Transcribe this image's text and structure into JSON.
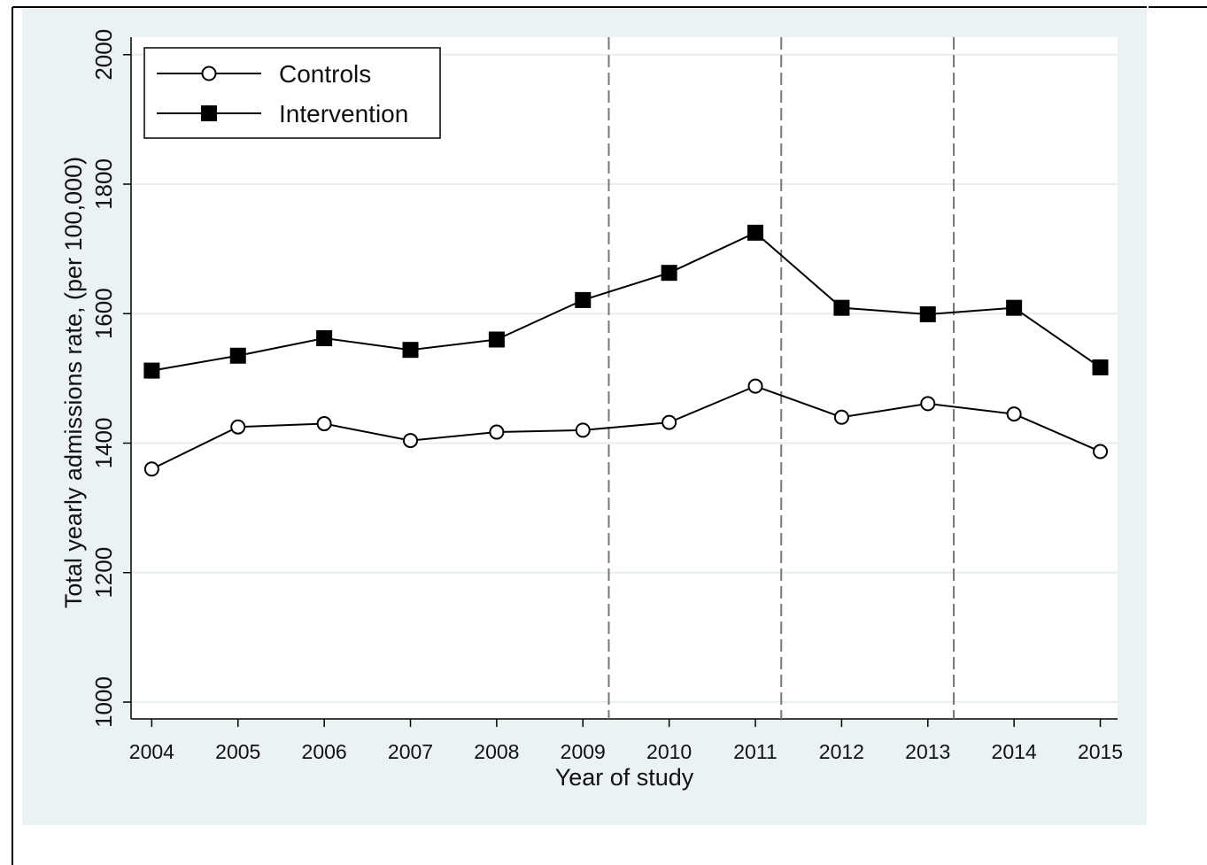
{
  "chart_data": {
    "type": "line",
    "xlabel": "Year of study",
    "ylabel": "Total yearly admissions rate, (per 100,000)",
    "x": [
      2004,
      2005,
      2006,
      2007,
      2008,
      2009,
      2010,
      2011,
      2012,
      2013,
      2014,
      2015
    ],
    "series": [
      {
        "name": "Controls",
        "color": "#000000",
        "marker": "open-circle",
        "values": [
          1360,
          1425,
          1430,
          1404,
          1417,
          1420,
          1432,
          1488,
          1440,
          1461,
          1445,
          1387
        ]
      },
      {
        "name": "Intervention",
        "color": "#000000",
        "marker": "filled-square",
        "values": [
          1512,
          1535,
          1562,
          1544,
          1560,
          1621,
          1663,
          1725,
          1609,
          1599,
          1609,
          1517
        ]
      }
    ],
    "xlim": [
      2003.76,
      2015.2
    ],
    "ylim": [
      974,
      2027
    ],
    "xticks": [
      2004,
      2005,
      2006,
      2007,
      2008,
      2009,
      2010,
      2011,
      2012,
      2013,
      2014,
      2015
    ],
    "yticks": [
      1000,
      1200,
      1400,
      1600,
      1800,
      2000
    ],
    "vlines": [
      2009.3,
      2011.3,
      2013.3
    ],
    "grid": true,
    "legend": "top-left"
  }
}
